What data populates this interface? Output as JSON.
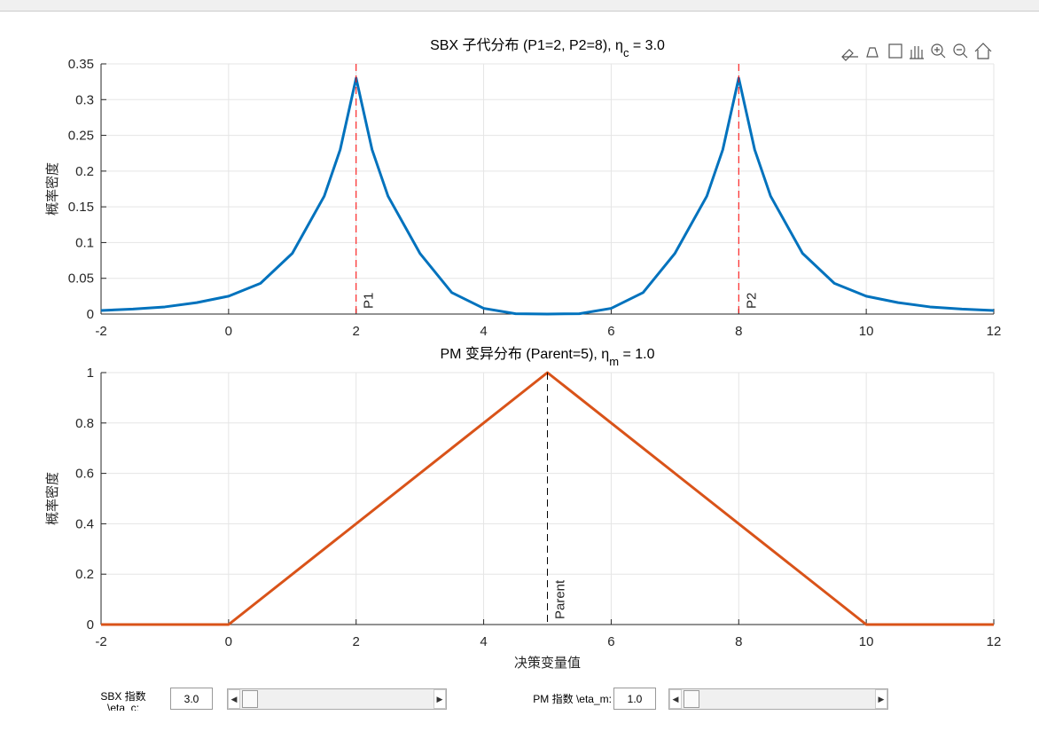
{
  "chart_data": [
    {
      "type": "line",
      "title_parts": [
        "SBX 子代分布 (P1=2, P2=8), η",
        "c",
        " = 3.0"
      ],
      "ylabel": "概率密度",
      "x": [
        -2,
        -1.5,
        -1,
        -0.5,
        0,
        0.5,
        1,
        1.5,
        1.75,
        2,
        2.25,
        2.5,
        3,
        3.5,
        4,
        4.5,
        5,
        5.5,
        6,
        6.5,
        7,
        7.5,
        7.75,
        8,
        8.25,
        8.5,
        9,
        9.5,
        10,
        10.5,
        11,
        11.5,
        12
      ],
      "series": [
        {
          "color": "#0072bd",
          "values": [
            0.005,
            0.007,
            0.01,
            0.016,
            0.025,
            0.043,
            0.085,
            0.165,
            0.23,
            0.33,
            0.23,
            0.165,
            0.085,
            0.03,
            0.008,
            0.0005,
            0,
            0.0005,
            0.008,
            0.03,
            0.085,
            0.165,
            0.23,
            0.33,
            0.23,
            0.165,
            0.085,
            0.043,
            0.025,
            0.016,
            0.01,
            0.007,
            0.005
          ]
        }
      ],
      "vlines": [
        {
          "x": 2,
          "label": "P1",
          "color": "#ff0000"
        },
        {
          "x": 8,
          "label": "P2",
          "color": "#ff0000"
        }
      ],
      "xlim": [
        -2,
        12
      ],
      "xticks": [
        -2,
        0,
        2,
        4,
        6,
        8,
        10,
        12
      ],
      "ylim": [
        0,
        0.35
      ],
      "yticks": [
        0,
        0.05,
        0.1,
        0.15,
        0.2,
        0.25,
        0.3,
        0.35
      ],
      "grid": true
    },
    {
      "type": "line",
      "title_parts": [
        "PM 变异分布 (Parent=5), η",
        "m",
        " = 1.0"
      ],
      "ylabel": "概率密度",
      "xlabel": "决策变量值",
      "x": [
        -2,
        0,
        5,
        10,
        12
      ],
      "series": [
        {
          "color": "#d95319",
          "values": [
            0,
            0,
            1,
            0,
            0
          ]
        }
      ],
      "vlines": [
        {
          "x": 5,
          "label": "Parent",
          "color": "#000000"
        }
      ],
      "xlim": [
        -2,
        12
      ],
      "xticks": [
        -2,
        0,
        2,
        4,
        6,
        8,
        10,
        12
      ],
      "ylim": [
        0,
        1
      ],
      "yticks": [
        0,
        0.2,
        0.4,
        0.6,
        0.8,
        1
      ],
      "grid": true
    }
  ],
  "controls": [
    {
      "label": "SBX 指数 \\eta_c:",
      "value": "3.0"
    },
    {
      "label": "PM 指数 \\eta_m:",
      "value": "1.0"
    }
  ]
}
